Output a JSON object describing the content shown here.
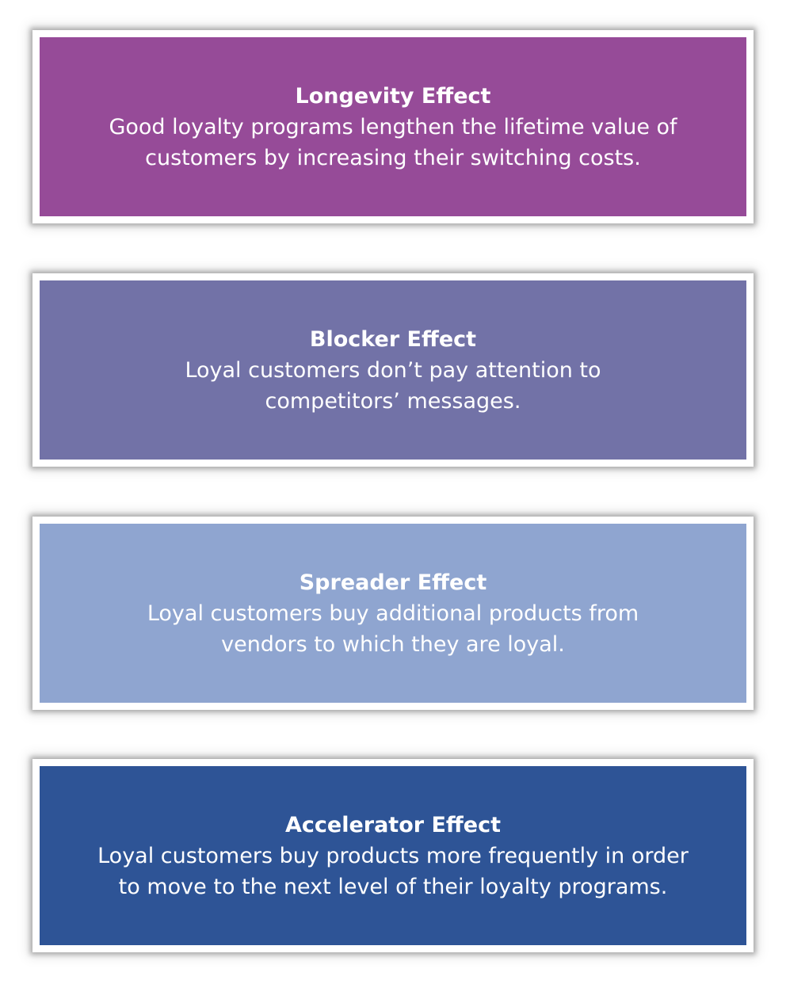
{
  "colors": {
    "longevity": "#964b98",
    "blocker": "#7272a7",
    "spreader": "#8fa5d0",
    "accelerator": "#2e5496"
  },
  "effects": [
    {
      "title": "Longevity Effect",
      "description": "Good loyalty programs lengthen the lifetime value of\ncustomers by increasing their switching costs."
    },
    {
      "title": "Blocker Effect",
      "description": "Loyal customers don’t pay attention to\ncompetitors’ messages."
    },
    {
      "title": "Spreader Effect",
      "description": "Loyal customers buy additional products from\nvendors to which they are loyal."
    },
    {
      "title": "Accelerator Effect",
      "description": "Loyal customers buy products more frequently in order\nto move to the next level of their loyalty programs."
    }
  ]
}
